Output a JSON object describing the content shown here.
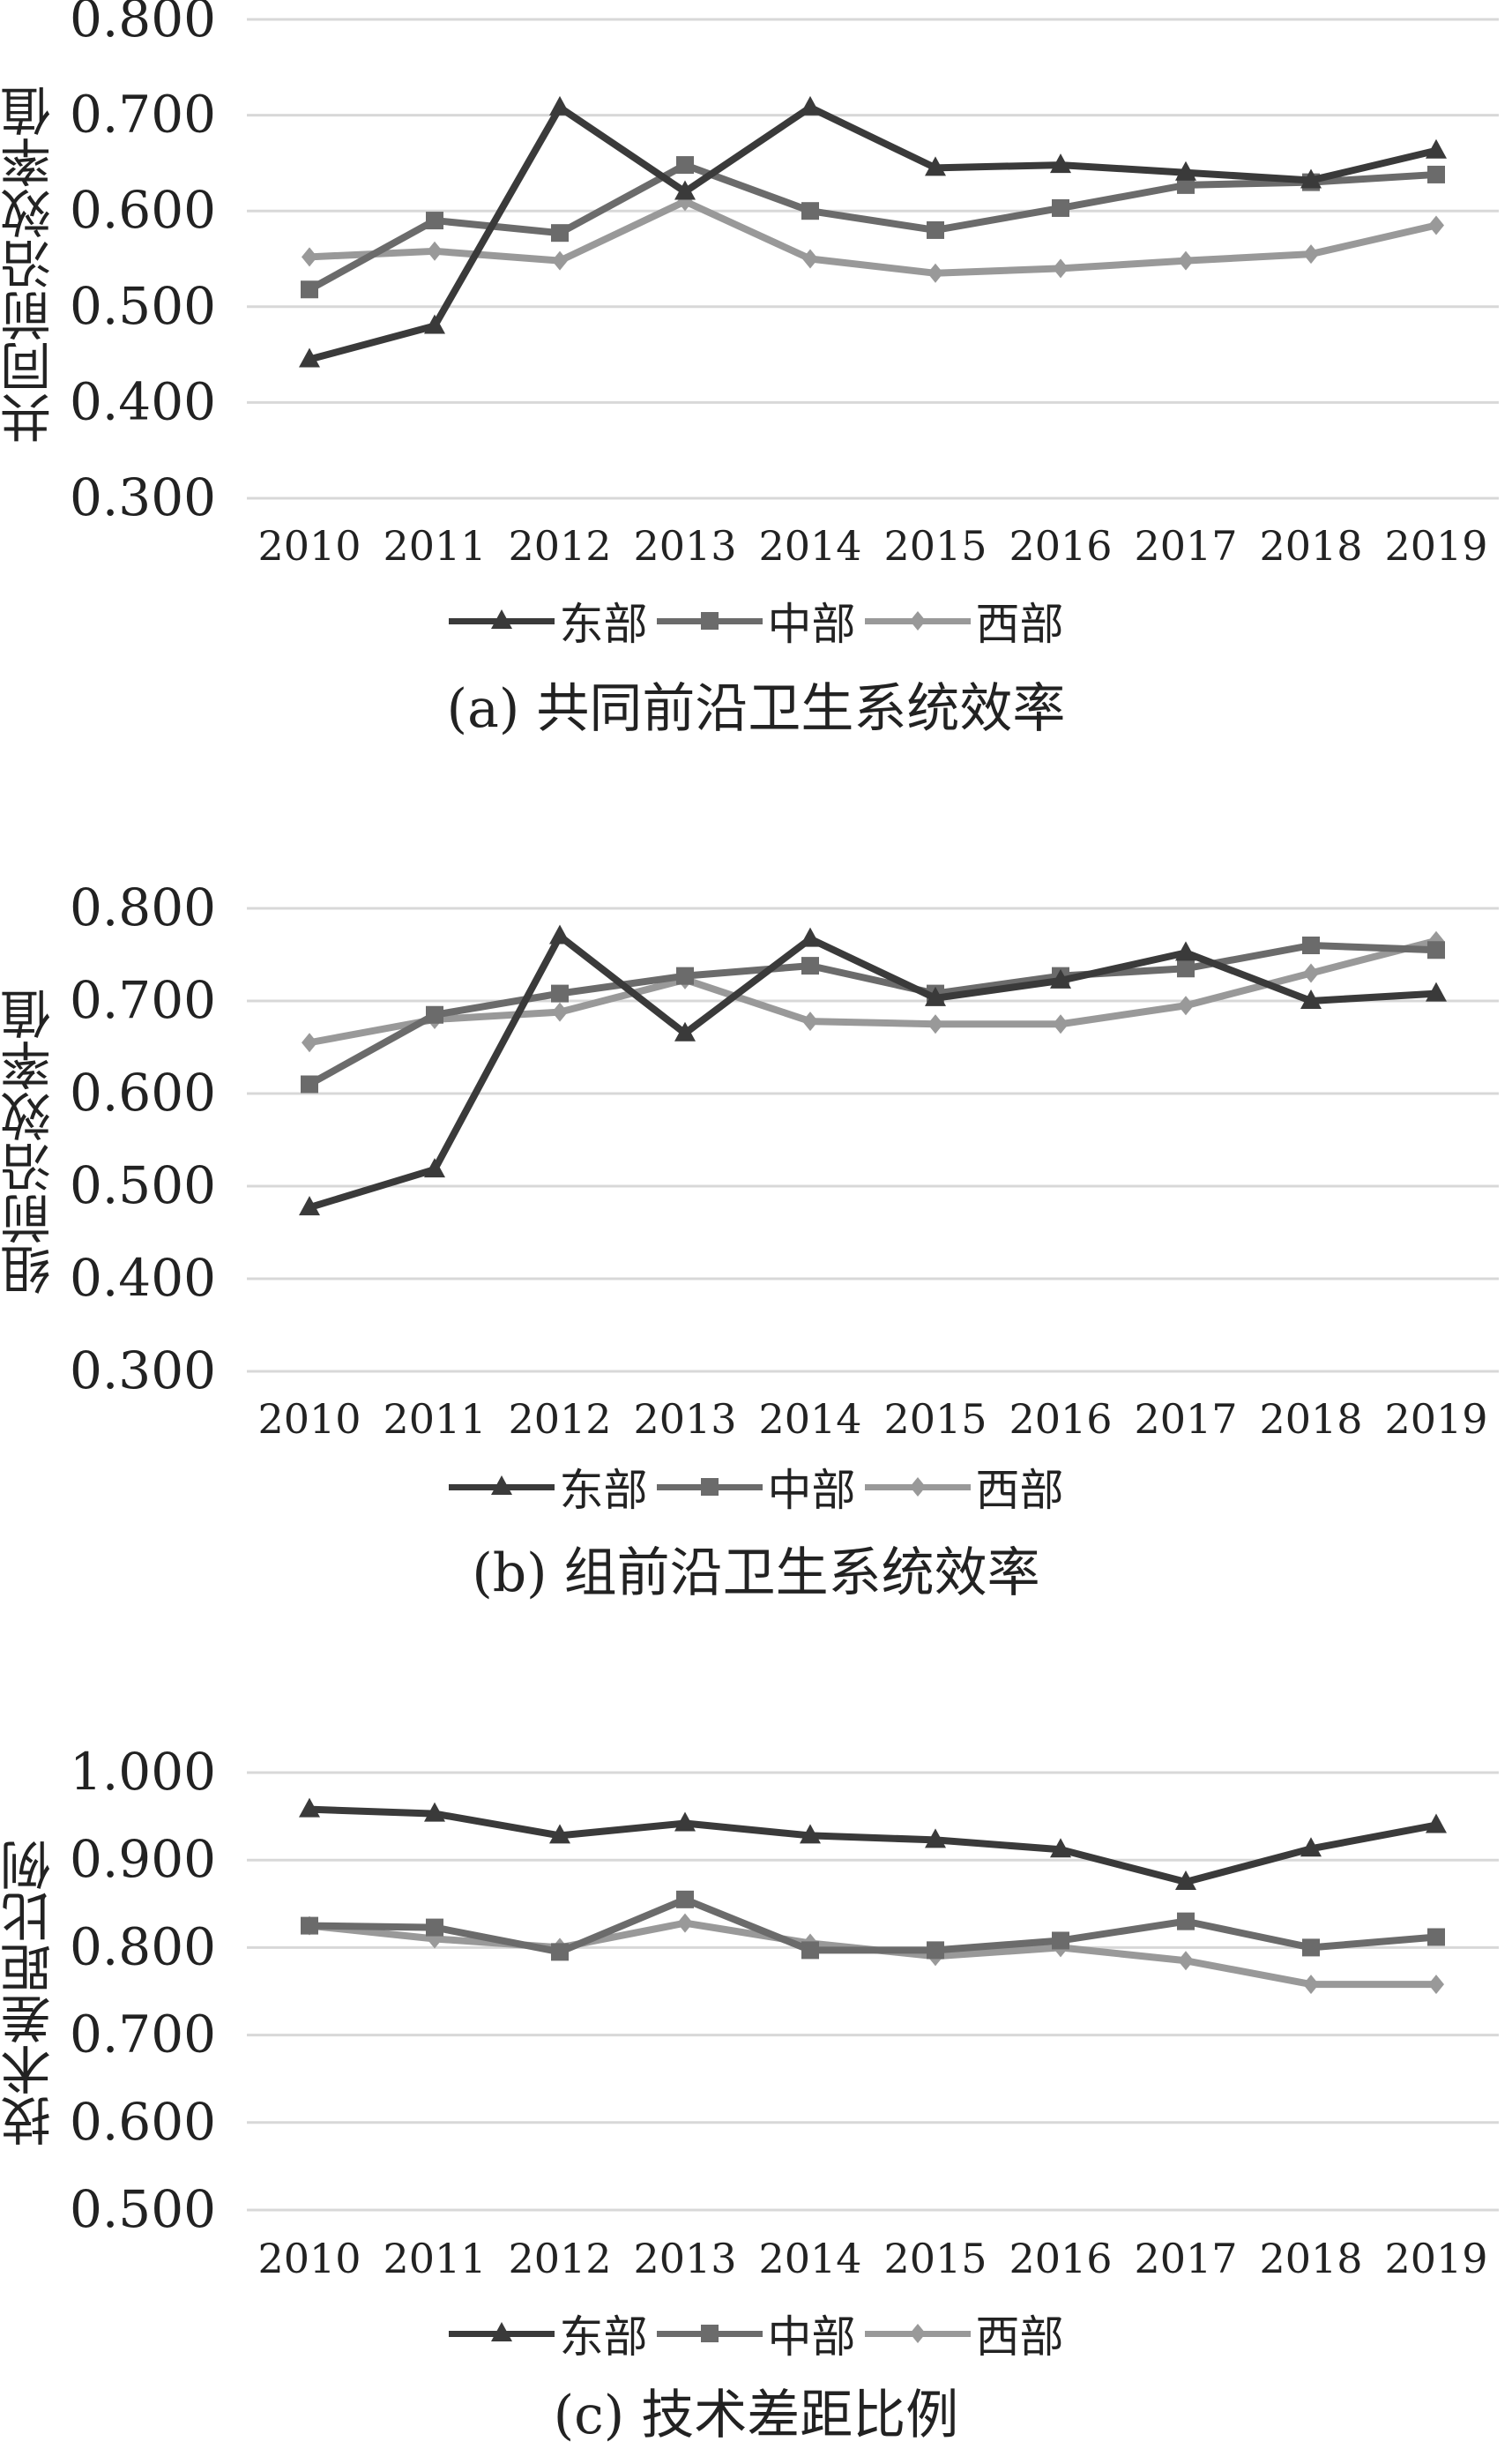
{
  "legend_labels": [
    "东部",
    "中部",
    "西部"
  ],
  "series_colors": [
    "#3a3a3a",
    "#6b6b6b",
    "#999999"
  ],
  "chart_data": [
    {
      "type": "line",
      "caption": "(a) 共同前沿卫生系统效率",
      "ylabel": "共同前沿效率值",
      "x": [
        "2010",
        "2011",
        "2012",
        "2013",
        "2014",
        "2015",
        "2016",
        "2017",
        "2018",
        "2019"
      ],
      "ylim": [
        0.3,
        0.8
      ],
      "yticks": [
        "0.300",
        "0.400",
        "0.500",
        "0.600",
        "0.700",
        "0.800"
      ],
      "series": [
        {
          "name": "东部",
          "marker": "triangle",
          "values": [
            0.445,
            0.48,
            0.708,
            0.62,
            0.708,
            0.645,
            0.648,
            0.64,
            0.632,
            0.663
          ]
        },
        {
          "name": "中部",
          "marker": "square",
          "values": [
            0.518,
            0.59,
            0.577,
            0.648,
            0.6,
            0.58,
            0.603,
            0.627,
            0.63,
            0.638
          ]
        },
        {
          "name": "西部",
          "marker": "diamond",
          "values": [
            0.552,
            0.558,
            0.548,
            0.61,
            0.55,
            0.535,
            0.54,
            0.548,
            0.555,
            0.585
          ]
        }
      ]
    },
    {
      "type": "line",
      "caption": "(b) 组前沿卫生系统效率",
      "ylabel": "组前沿效率值",
      "x": [
        "2010",
        "2011",
        "2012",
        "2013",
        "2014",
        "2015",
        "2016",
        "2017",
        "2018",
        "2019"
      ],
      "ylim": [
        0.3,
        0.8
      ],
      "yticks": [
        "0.300",
        "0.400",
        "0.500",
        "0.600",
        "0.700",
        "0.800"
      ],
      "series": [
        {
          "name": "东部",
          "marker": "triangle",
          "values": [
            0.477,
            0.518,
            0.77,
            0.665,
            0.767,
            0.703,
            0.722,
            0.752,
            0.7,
            0.708
          ]
        },
        {
          "name": "中部",
          "marker": "square",
          "values": [
            0.61,
            0.685,
            0.708,
            0.727,
            0.738,
            0.708,
            0.727,
            0.735,
            0.76,
            0.755
          ]
        },
        {
          "name": "西部",
          "marker": "diamond",
          "values": [
            0.655,
            0.68,
            0.688,
            0.723,
            0.678,
            0.675,
            0.675,
            0.695,
            0.73,
            0.765
          ]
        }
      ]
    },
    {
      "type": "line",
      "caption": "(c) 技术差距比例",
      "ylabel": "技术差距比例",
      "x": [
        "2010",
        "2011",
        "2012",
        "2013",
        "2014",
        "2015",
        "2016",
        "2017",
        "2018",
        "2019"
      ],
      "ylim": [
        0.5,
        1.0
      ],
      "yticks": [
        "0.500",
        "0.600",
        "0.700",
        "0.800",
        "0.900",
        "1.000"
      ],
      "series": [
        {
          "name": "东部",
          "marker": "triangle",
          "values": [
            0.958,
            0.953,
            0.928,
            0.942,
            0.928,
            0.923,
            0.912,
            0.875,
            0.913,
            0.94
          ]
        },
        {
          "name": "中部",
          "marker": "square",
          "values": [
            0.825,
            0.823,
            0.795,
            0.855,
            0.797,
            0.797,
            0.808,
            0.83,
            0.8,
            0.812
          ]
        },
        {
          "name": "西部",
          "marker": "diamond",
          "values": [
            0.825,
            0.81,
            0.8,
            0.828,
            0.805,
            0.79,
            0.8,
            0.785,
            0.758,
            0.758
          ]
        }
      ]
    }
  ]
}
